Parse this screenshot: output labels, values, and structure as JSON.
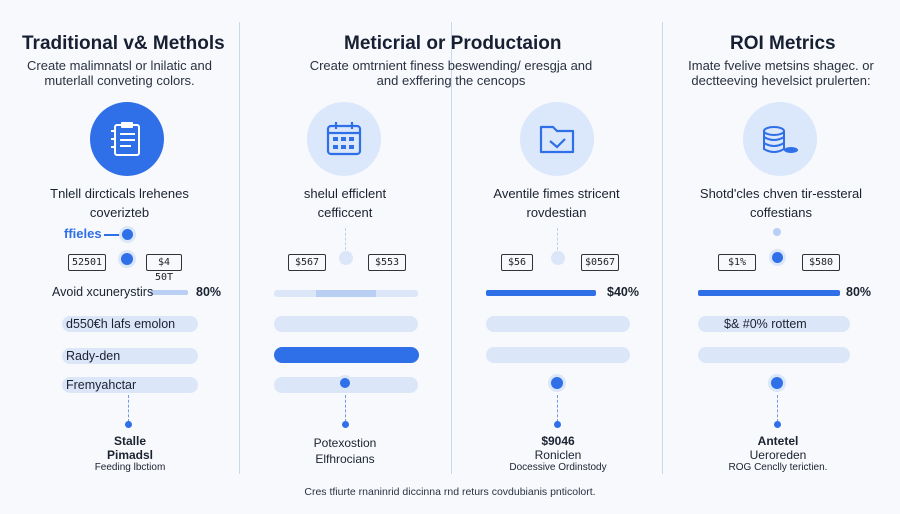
{
  "columns": [
    {
      "title": "Traditional v& Methols",
      "subtitle_line1": "Create malimnatsl or lnilatic and",
      "subtitle_line2": "muterlall conveting colors.",
      "icon": "clipboard-icon",
      "caption_line1": "Tnlell dircticals lrehenes",
      "caption_line2": "coverizteb",
      "tag": "ffieles",
      "box_left": "52501",
      "box_right": "$4 50T",
      "row1_text": "Avoid xcunerystirs",
      "row1_pct": "80%",
      "row2_text": "d550€h lafs emolon",
      "row3_text": "Rady-den",
      "row4_text": "Fremyahctar",
      "bottom_line1": "Stalle",
      "bottom_line2": "Pimadsl",
      "bottom_line3": "Feeding lbctiom"
    },
    {
      "title": "Meticrial or Productaion",
      "subtitle_line1": "Create omtrnient finess beswending/ eresgja and",
      "subtitle_line2": "and exffering the cencops",
      "icon": "calendar-icon",
      "caption_line1": "shelul efficlent",
      "caption_line2": "cefficcent",
      "box_left": "$567",
      "box_right": "$553",
      "bottom_line1": "Potexostion",
      "bottom_line2": "Elfhrocians"
    },
    {
      "title": "",
      "icon": "folder-check-icon",
      "caption_line1": "Aventile fimes stricent",
      "caption_line2": "rovdestian",
      "box_left": "$56",
      "box_right": "$0567",
      "row1_pct": "$40%",
      "bottom_line1": "$9046",
      "bottom_line2": "Roniclen",
      "bottom_line3": "Docessive Ordinstody"
    },
    {
      "title": "ROI Metrics",
      "subtitle_line1": "Imate fvelive metsins shagec. or",
      "subtitle_line2": "dectteeving hevelsict prulerten:",
      "icon": "coins-icon",
      "caption_line1": "Shotd'cles chven tir-essteral",
      "caption_line2": "coffestians",
      "box_left": "$1%",
      "box_right": "$580",
      "row1_pct": "80%",
      "row2_text": "$& #0% rottem",
      "bottom_line1": "Antetel",
      "bottom_line2": "Ueroreden",
      "bottom_line3": "ROG Cenclly terictien."
    }
  ],
  "footer": "Cres tfiurte rnaninrid diccinna rnd returs covdubianis pnticolort.",
  "colors": {
    "accent": "#2f6fe8",
    "light_bar": "#dbe6f8",
    "mid_bar": "#b9cff3",
    "divider": "#c8d8f0"
  }
}
